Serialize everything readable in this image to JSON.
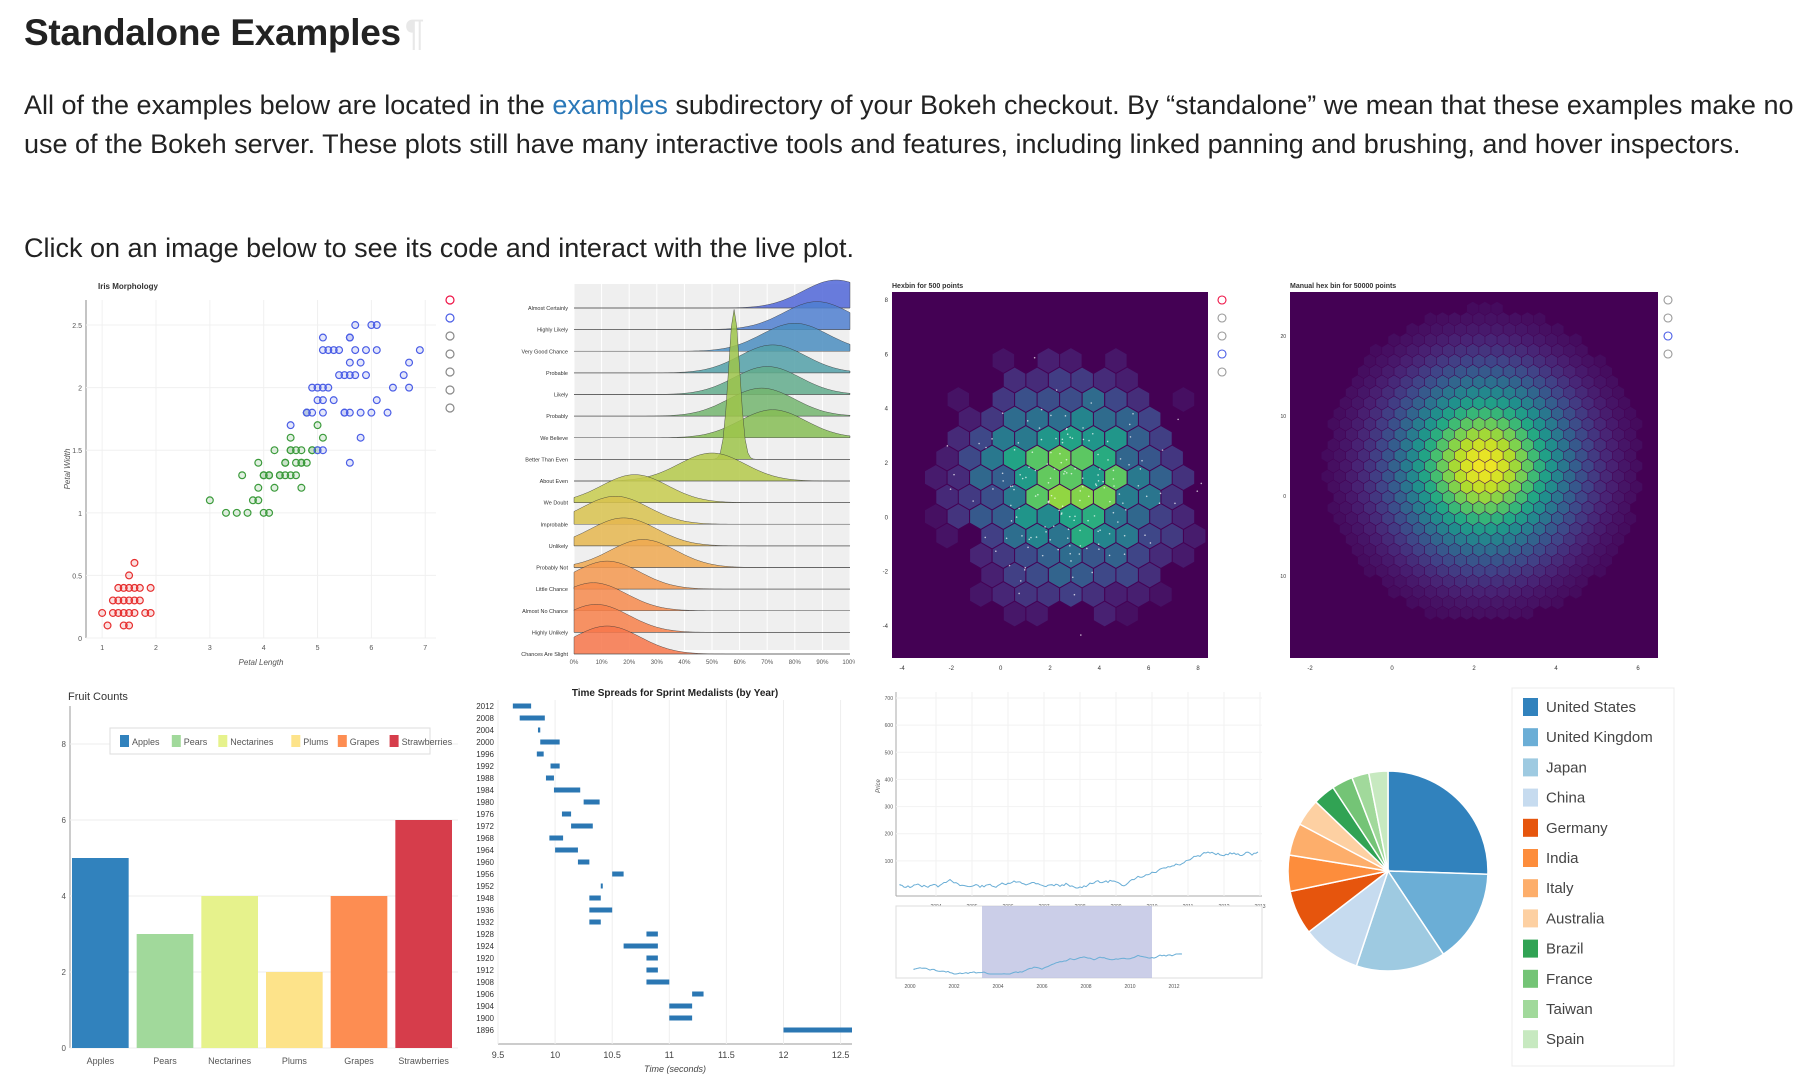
{
  "heading": {
    "title": "Standalone Examples",
    "pilcrow": "¶"
  },
  "intro": {
    "before_link": "All of the examples below are located in the ",
    "link": "examples",
    "after_link": " subdirectory of your Bokeh checkout. By “standalone” we mean that these examples make no use of the Bokeh server. These plots still have many interactive tools and features, including linked panning and brushing, and hover inspectors."
  },
  "instruction": "Click on an image below to see its code and interact with the live plot.",
  "colors": {
    "link": "#2a78b8",
    "hexbg": "#440154",
    "setosa": "#e62e2e",
    "versicolor": "#3c9b3c",
    "virginica": "#4a5de6"
  },
  "thumbnails": [
    {
      "id": "iris",
      "chart_data": {
        "type": "scatter",
        "title": "Iris Morphology",
        "xlabel": "Petal Length",
        "ylabel": "Petal Width",
        "xlim": [
          0.7,
          7.2
        ],
        "ylim": [
          0,
          2.7
        ],
        "xticks": [
          "1",
          "2",
          "3",
          "4",
          "5",
          "6",
          "7"
        ],
        "yticks": [
          "0",
          "0.5",
          "1",
          "1.5",
          "2",
          "2.5"
        ],
        "series": [
          {
            "color": "#e62e2e",
            "points": [
              [
                1.4,
                0.2
              ],
              [
                1.3,
                0.2
              ],
              [
                1.5,
                0.2
              ],
              [
                1.4,
                0.3
              ],
              [
                1.7,
                0.4
              ],
              [
                1.5,
                0.1
              ],
              [
                1.6,
                0.2
              ],
              [
                1.1,
                0.1
              ],
              [
                1.2,
                0.2
              ],
              [
                1.5,
                0.4
              ],
              [
                1.3,
                0.4
              ],
              [
                1.7,
                0.3
              ],
              [
                1.5,
                0.3
              ],
              [
                1.0,
                0.2
              ],
              [
                1.9,
                0.4
              ],
              [
                1.6,
                0.6
              ],
              [
                1.4,
                0.1
              ],
              [
                1.6,
                0.4
              ],
              [
                1.2,
                0.3
              ],
              [
                1.3,
                0.3
              ],
              [
                1.5,
                0.5
              ],
              [
                1.8,
                0.2
              ],
              [
                1.4,
                0.4
              ],
              [
                1.9,
                0.2
              ],
              [
                1.6,
                0.3
              ]
            ]
          },
          {
            "color": "#3c9b3c",
            "points": [
              [
                4.7,
                1.4
              ],
              [
                4.5,
                1.5
              ],
              [
                4.9,
                1.5
              ],
              [
                4.0,
                1.3
              ],
              [
                4.6,
                1.5
              ],
              [
                4.5,
                1.3
              ],
              [
                3.3,
                1.0
              ],
              [
                4.6,
                1.3
              ],
              [
                3.9,
                1.4
              ],
              [
                3.5,
                1.0
              ],
              [
                4.2,
                1.5
              ],
              [
                4.0,
                1.0
              ],
              [
                4.7,
                1.4
              ],
              [
                3.6,
                1.3
              ],
              [
                4.4,
                1.4
              ],
              [
                4.1,
                1.0
              ],
              [
                4.5,
                1.5
              ],
              [
                3.9,
                1.1
              ],
              [
                4.8,
                1.8
              ],
              [
                4.0,
                1.3
              ],
              [
                4.9,
                1.5
              ],
              [
                4.7,
                1.2
              ],
              [
                4.3,
                1.3
              ],
              [
                4.4,
                1.4
              ],
              [
                4.8,
                1.4
              ],
              [
                5.0,
                1.7
              ],
              [
                3.8,
                1.1
              ],
              [
                3.7,
                1.0
              ],
              [
                5.1,
                1.6
              ],
              [
                4.5,
                1.6
              ],
              [
                4.7,
                1.5
              ],
              [
                4.4,
                1.3
              ],
              [
                4.1,
                1.3
              ],
              [
                4.2,
                1.2
              ],
              [
                4.3,
                1.3
              ],
              [
                3.0,
                1.1
              ],
              [
                4.1,
                1.3
              ],
              [
                5.0,
                1.5
              ],
              [
                3.9,
                1.2
              ],
              [
                4.6,
                1.4
              ]
            ]
          },
          {
            "color": "#4a5de6",
            "points": [
              [
                6.0,
                2.5
              ],
              [
                5.1,
                1.9
              ],
              [
                5.9,
                2.1
              ],
              [
                5.6,
                1.8
              ],
              [
                5.8,
                2.2
              ],
              [
                6.6,
                2.1
              ],
              [
                4.5,
                1.7
              ],
              [
                6.3,
                1.8
              ],
              [
                5.8,
                1.8
              ],
              [
                6.1,
                2.5
              ],
              [
                5.1,
                2.0
              ],
              [
                5.3,
                1.9
              ],
              [
                5.5,
                2.1
              ],
              [
                5.0,
                2.0
              ],
              [
                5.1,
                2.4
              ],
              [
                5.3,
                2.3
              ],
              [
                5.5,
                1.8
              ],
              [
                6.7,
                2.2
              ],
              [
                6.9,
                2.3
              ],
              [
                5.0,
                1.5
              ],
              [
                5.7,
                2.3
              ],
              [
                4.9,
                2.0
              ],
              [
                6.7,
                2.0
              ],
              [
                4.9,
                1.8
              ],
              [
                5.7,
                2.1
              ],
              [
                6.0,
                1.8
              ],
              [
                4.8,
                1.8
              ],
              [
                5.6,
                2.1
              ],
              [
                5.8,
                1.6
              ],
              [
                6.1,
                1.9
              ],
              [
                6.4,
                2.0
              ],
              [
                5.6,
                2.2
              ],
              [
                5.1,
                1.5
              ],
              [
                5.6,
                1.4
              ],
              [
                6.1,
                2.3
              ],
              [
                5.6,
                2.4
              ],
              [
                5.5,
                1.8
              ],
              [
                4.8,
                1.8
              ],
              [
                5.4,
                2.1
              ],
              [
                5.6,
                2.4
              ],
              [
                5.1,
                2.3
              ],
              [
                5.9,
                2.3
              ],
              [
                5.7,
                2.5
              ],
              [
                5.2,
                2.3
              ],
              [
                5.0,
                1.9
              ],
              [
                5.2,
                2.0
              ],
              [
                5.4,
                2.3
              ],
              [
                5.1,
                1.8
              ]
            ]
          }
        ]
      }
    },
    {
      "id": "ridgeplot",
      "chart_data": {
        "type": "area",
        "categories": [
          "Almost Certainly",
          "Highly Likely",
          "Very Good Chance",
          "Probable",
          "Likely",
          "Probably",
          "We Believe",
          "Better Than Even",
          "About Even",
          "We Doubt",
          "Improbable",
          "Unlikely",
          "Probably Not",
          "Little Chance",
          "Almost No Chance",
          "Highly Unlikely",
          "Chances Are Slight"
        ],
        "peaks": [
          95,
          88,
          80,
          72,
          70,
          68,
          72,
          58,
          50,
          22,
          15,
          18,
          25,
          12,
          7,
          8,
          12
        ],
        "xticks": [
          "0%",
          "10%",
          "20%",
          "30%",
          "40%",
          "50%",
          "60%",
          "70%",
          "80%",
          "90%",
          "100%"
        ]
      }
    },
    {
      "id": "hexbin",
      "chart_data": {
        "type": "heatmap",
        "title": "Hexbin for 500 points",
        "xticks": [
          "-4",
          "-2",
          "0",
          "2",
          "4",
          "6",
          "8"
        ],
        "yticks": [
          "-4",
          "-2",
          "0",
          "2",
          "4",
          "6",
          "8"
        ]
      }
    },
    {
      "id": "hexbin-manual",
      "chart_data": {
        "type": "heatmap",
        "title": "Manual hex bin for 50000 points",
        "xticks": [
          "-2",
          "0",
          "2",
          "4",
          "6"
        ],
        "yticks": [
          "-10",
          "0",
          "10",
          "20"
        ]
      }
    },
    {
      "id": "fruits",
      "chart_data": {
        "type": "bar",
        "title": "Fruit Counts",
        "categories": [
          "Apples",
          "Pears",
          "Nectarines",
          "Plums",
          "Grapes",
          "Strawberries"
        ],
        "values": [
          5,
          3,
          4,
          2,
          4,
          6
        ],
        "colors": [
          "#3182bd",
          "#a1d99b",
          "#e6f28c",
          "#fde38a",
          "#fd8d52",
          "#d63d4b"
        ],
        "ylim": [
          0,
          9
        ],
        "yticks": [
          "0",
          "2",
          "4",
          "6",
          "8"
        ]
      }
    },
    {
      "id": "sprint",
      "chart_data": {
        "type": "bar",
        "title": "Time Spreads for Sprint Medalists (by Year)",
        "xlabel": "Time (seconds)",
        "xlim": [
          9.5,
          12.6
        ],
        "xticks": [
          "9.5",
          "10",
          "10.5",
          "11",
          "11.5",
          "12",
          "12.5"
        ],
        "years": [
          "2012",
          "2008",
          "2004",
          "2000",
          "1996",
          "1992",
          "1988",
          "1984",
          "1980",
          "1976",
          "1972",
          "1968",
          "1964",
          "1960",
          "1956",
          "1952",
          "1948",
          "1936",
          "1932",
          "1928",
          "1924",
          "1920",
          "1912",
          "1908",
          "1906",
          "1904",
          "1900",
          "1896"
        ],
        "ranges": [
          [
            9.63,
            9.79
          ],
          [
            9.69,
            9.91
          ],
          [
            9.85,
            9.87
          ],
          [
            9.87,
            10.04
          ],
          [
            9.84,
            9.9
          ],
          [
            9.96,
            10.04
          ],
          [
            9.92,
            9.99
          ],
          [
            9.99,
            10.22
          ],
          [
            10.25,
            10.39
          ],
          [
            10.06,
            10.14
          ],
          [
            10.14,
            10.33
          ],
          [
            9.95,
            10.07
          ],
          [
            10.0,
            10.2
          ],
          [
            10.2,
            10.3
          ],
          [
            10.5,
            10.6
          ],
          [
            10.4,
            10.41
          ],
          [
            10.3,
            10.4
          ],
          [
            10.3,
            10.5
          ],
          [
            10.3,
            10.4
          ],
          [
            10.8,
            10.9
          ],
          [
            10.6,
            10.9
          ],
          [
            10.8,
            10.9
          ],
          [
            10.8,
            10.9
          ],
          [
            10.8,
            11.0
          ],
          [
            11.2,
            11.3
          ],
          [
            11.0,
            11.2
          ],
          [
            11.0,
            11.2
          ],
          [
            12.0,
            12.6
          ]
        ]
      }
    },
    {
      "id": "stocks",
      "chart_data": {
        "type": "line",
        "ylabel": "Price",
        "yticks": [
          "100",
          "200",
          "300",
          "400",
          "500",
          "600",
          "700"
        ],
        "xticks": [
          "2004",
          "2005",
          "2006",
          "2007",
          "2008",
          "2009",
          "2010",
          "2011",
          "2012",
          "2013"
        ],
        "range_xticks": [
          "2000",
          "2002",
          "2004",
          "2006",
          "2008",
          "2010",
          "2012"
        ]
      }
    },
    {
      "id": "pie",
      "chart_data": {
        "type": "pie",
        "categories": [
          "United States",
          "United Kingdom",
          "Japan",
          "China",
          "Germany",
          "India",
          "Italy",
          "Australia",
          "Brazil",
          "France",
          "Taiwan",
          "Spain"
        ],
        "values": [
          157,
          93,
          89,
          58,
          44,
          36,
          32,
          27,
          22,
          21,
          17,
          19
        ],
        "colors": [
          "#3182bd",
          "#6baed6",
          "#9ecae1",
          "#c6dbef",
          "#e6550d",
          "#fd8d3c",
          "#fdae6b",
          "#fdd0a2",
          "#31a354",
          "#74c476",
          "#a1d99b",
          "#c7e9c0"
        ]
      }
    }
  ]
}
